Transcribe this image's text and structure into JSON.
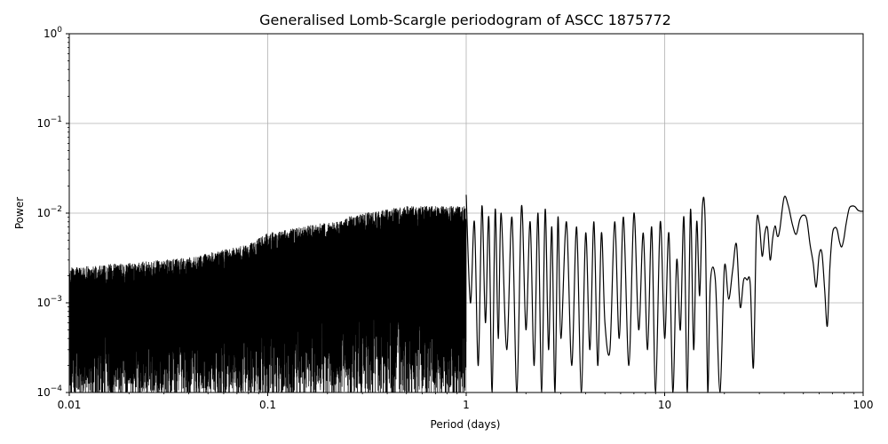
{
  "chart_data": {
    "type": "line",
    "title": "Generalised Lomb-Scargle periodogram of ASCC 1875772",
    "xlabel": "Period (days)",
    "ylabel": "Power",
    "xscale": "log",
    "yscale": "log",
    "xlim": [
      0.01,
      100
    ],
    "ylim": [
      0.0001,
      1
    ],
    "grid": true,
    "x_ticks": [
      {
        "value": 0.01,
        "label": "0.01"
      },
      {
        "value": 0.1,
        "label": "0.1"
      },
      {
        "value": 1,
        "label": "1"
      },
      {
        "value": 10,
        "label": "10"
      },
      {
        "value": 100,
        "label": "100"
      }
    ],
    "y_ticks": [
      {
        "value": 0.0001,
        "base": "10",
        "exp": "−4"
      },
      {
        "value": 0.001,
        "base": "10",
        "exp": "−3"
      },
      {
        "value": 0.01,
        "base": "10",
        "exp": "−2"
      },
      {
        "value": 0.1,
        "base": "10",
        "exp": "−1"
      },
      {
        "value": 1,
        "base": "10",
        "exp": "0"
      }
    ],
    "line_color": "#000000",
    "grid_color": "#b0b0b0",
    "noise_envelope": {
      "x": [
        0.01,
        0.02,
        0.04,
        0.08,
        0.1,
        0.2,
        0.3,
        0.5,
        0.7,
        1.0
      ],
      "y": [
        0.0025,
        0.0028,
        0.0032,
        0.0045,
        0.006,
        0.008,
        0.01,
        0.012,
        0.012,
        0.012
      ]
    },
    "series": [
      {
        "x": [
          1.0,
          1.05,
          1.1,
          1.15,
          1.2,
          1.25,
          1.3,
          1.35,
          1.4,
          1.45,
          1.5,
          1.6,
          1.7,
          1.8,
          1.9,
          2.0,
          2.1,
          2.2,
          2.3,
          2.4,
          2.5,
          2.6,
          2.7,
          2.8,
          2.9,
          3.0,
          3.2,
          3.4,
          3.6,
          3.8,
          4.0,
          4.2,
          4.4,
          4.6,
          4.8,
          5.0,
          5.3,
          5.6,
          5.9,
          6.2,
          6.6,
          7.0,
          7.4,
          7.8,
          8.2,
          8.6,
          9.0,
          9.5,
          10.0,
          10.5,
          11.0,
          11.5,
          12.0,
          12.5,
          13.0,
          13.5,
          14.0,
          14.5,
          15.0,
          15.5,
          16.0,
          16.5,
          17.0,
          18.0,
          19.0,
          20.0,
          21.0,
          22.0,
          23.0,
          24.0,
          25.0,
          26.0,
          27.0,
          28.0,
          29.0,
          30.0,
          31.0,
          32.0,
          33.0,
          34.0,
          35.0,
          36.0,
          37.0,
          38.0,
          40.0,
          42.0,
          44.0,
          46.0,
          48.0,
          50.0,
          52.0,
          54.0,
          56.0,
          58.0,
          60.0,
          62.0,
          64.0,
          66.0,
          68.0,
          70.0,
          72.0,
          74.0,
          76.0,
          78.0,
          80.0,
          82.0,
          85.0,
          88.0,
          91.0,
          94.0,
          97.0,
          100.0
        ],
        "y": [
          0.016,
          0.001,
          0.008,
          0.0002,
          0.012,
          0.0006,
          0.009,
          0.0001,
          0.011,
          0.0004,
          0.01,
          0.0003,
          0.009,
          0.0001,
          0.012,
          0.0005,
          0.008,
          0.0002,
          0.01,
          0.0001,
          0.011,
          0.0003,
          0.007,
          0.0001,
          0.009,
          0.0004,
          0.008,
          0.0002,
          0.007,
          0.0001,
          0.006,
          0.0003,
          0.008,
          0.0002,
          0.006,
          0.0006,
          0.0003,
          0.008,
          0.0004,
          0.009,
          0.0002,
          0.01,
          0.0005,
          0.006,
          0.0003,
          0.007,
          0.0001,
          0.008,
          0.0004,
          0.006,
          0.0001,
          0.003,
          0.0005,
          0.009,
          0.0001,
          0.011,
          0.0003,
          0.008,
          0.0012,
          0.012,
          0.008,
          0.0001,
          0.0017,
          0.0018,
          0.0001,
          0.0025,
          0.0011,
          0.0023,
          0.0045,
          0.0009,
          0.0018,
          0.0018,
          0.0016,
          0.00019,
          0.0068,
          0.0075,
          0.0033,
          0.006,
          0.0068,
          0.003,
          0.0052,
          0.0072,
          0.0055,
          0.0065,
          0.015,
          0.012,
          0.0075,
          0.0058,
          0.0085,
          0.0095,
          0.0085,
          0.0045,
          0.0028,
          0.0015,
          0.0034,
          0.0036,
          0.0014,
          0.00055,
          0.0025,
          0.0058,
          0.0069,
          0.0065,
          0.0048,
          0.0042,
          0.0052,
          0.0075,
          0.0112,
          0.012,
          0.0118,
          0.0108,
          0.0105,
          0.0105
        ]
      }
    ]
  }
}
